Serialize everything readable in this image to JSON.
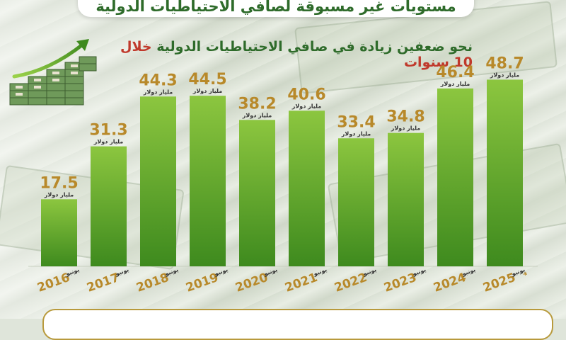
{
  "header": {
    "top_title": "مستويات غير مسبوقة لصافي الاحتياطيات الدولية",
    "subtitle_part1": "نحو ضعفين زيادة في صافي الاحتياطيات الدولية ",
    "subtitle_part2": "خلال 10 سنوات"
  },
  "colors": {
    "bar_top": "#8cc63f",
    "bar_bottom": "#3e8a1e",
    "value_text": "#b8892a",
    "year_text": "#b8892a",
    "title_green": "#2e6b2a",
    "highlight_red": "#c0392b"
  },
  "chart_data": {
    "type": "bar",
    "categories": [
      "2016",
      "2017",
      "2018",
      "2019",
      "2020",
      "2021",
      "2022",
      "2023",
      "2024",
      "2025"
    ],
    "month_labels": [
      "يونيو",
      "يونيو",
      "يونيو",
      "يونيو",
      "يونيو",
      "يونيو",
      "يونيو",
      "يونيو",
      "يونيو",
      "يونيو"
    ],
    "year_suffix": [
      "",
      "",
      "",
      "",
      "",
      "",
      "",
      "",
      "",
      "*"
    ],
    "values": [
      17.5,
      31.3,
      44.3,
      44.5,
      38.2,
      40.6,
      33.4,
      34.8,
      46.4,
      48.7
    ],
    "value_labels": [
      "17.5",
      "31.3",
      "44.3",
      "44.5",
      "38.2",
      "40.6",
      "33.4",
      "34.8",
      "46.4",
      "48.7"
    ],
    "unit": "مليار دولار",
    "ylim": [
      0,
      52
    ]
  }
}
